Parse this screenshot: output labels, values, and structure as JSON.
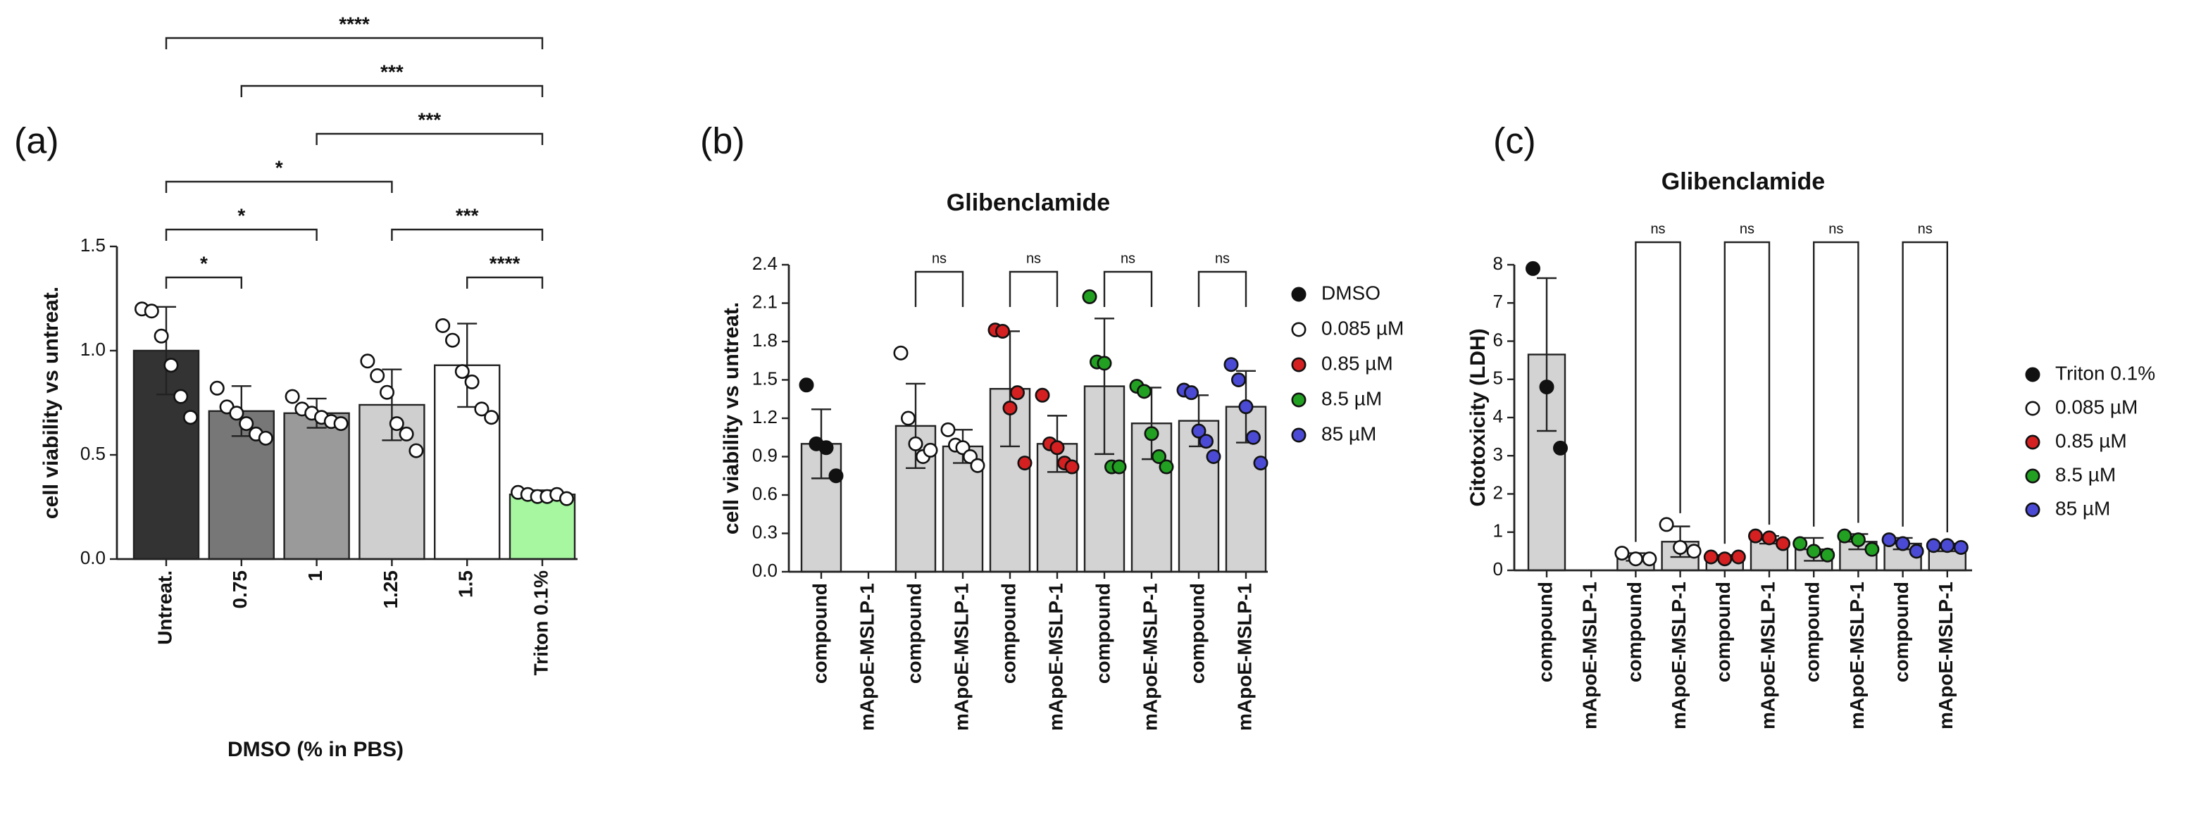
{
  "chart_data": [
    {
      "type": "bar",
      "panel_label": "(a)",
      "y_label": "cell viability vs untreat.",
      "x_label": "DMSO (% in PBS)",
      "categories": [
        "Untreat.",
        "0.75",
        "1",
        "1.25",
        "1.5",
        "Triton 0.1%"
      ],
      "series": [
        {
          "values": [
            1.0,
            0.71,
            0.7,
            0.74,
            0.93,
            0.31
          ],
          "colors": [
            "#333333",
            "#777777",
            "#9a9a9a",
            "#cfcfcf",
            "#ffffff",
            "#a6f7a0"
          ],
          "errors": [
            0.21,
            0.12,
            0.07,
            0.17,
            0.2,
            0.02
          ],
          "points": [
            [
              1.2,
              1.19,
              1.07,
              0.93,
              0.78,
              0.68
            ],
            [
              0.82,
              0.73,
              0.7,
              0.65,
              0.6,
              0.58
            ],
            [
              0.78,
              0.72,
              0.7,
              0.68,
              0.66,
              0.65
            ],
            [
              0.95,
              0.88,
              0.8,
              0.65,
              0.6,
              0.52
            ],
            [
              1.12,
              1.05,
              0.9,
              0.85,
              0.72,
              0.68
            ],
            [
              0.32,
              0.31,
              0.3,
              0.3,
              0.31,
              0.29
            ]
          ]
        }
      ],
      "point_color": "#ffffff",
      "ylim": [
        0,
        1.5
      ],
      "yticks": [
        {
          "value": 0,
          "label": "0.0"
        },
        {
          "value": 0.5,
          "label": "0.5"
        },
        {
          "value": 1,
          "label": "1.0"
        },
        {
          "value": 1.5,
          "label": "1.5"
        }
      ],
      "brackets": [
        {
          "from": 0,
          "to": 5,
          "label": "****"
        },
        {
          "from": 1,
          "to": 5,
          "label": "***"
        },
        {
          "from": 2,
          "to": 5,
          "label": "***"
        },
        {
          "from": 0,
          "to": 3,
          "label": "*"
        },
        {
          "from": 0,
          "to": 2,
          "label": "*"
        },
        {
          "from": 3,
          "to": 5,
          "label": "***"
        },
        {
          "from": 0,
          "to": 1,
          "label": "*"
        },
        {
          "from": 4,
          "to": 5,
          "label": "****"
        }
      ]
    },
    {
      "type": "bar",
      "panel_label": "(b)",
      "title": "Glibenclamide",
      "y_label": "cell viability vs untreat.",
      "categories": [
        "compound",
        "mApoE-MSLP-1",
        "compound",
        "mApoE-MSLP-1",
        "compound",
        "mApoE-MSLP-1",
        "compound",
        "mApoE-MSLP-1",
        "compound",
        "mApoE-MSLP-1"
      ],
      "bar_color": "#d3d3d3",
      "series": [
        {
          "name": "DMSO",
          "color": "#111111",
          "values": [
            1.0,
            null,
            null,
            null,
            null,
            null,
            null,
            null,
            null,
            null
          ],
          "errors": [
            0.27,
            null,
            null,
            null,
            null,
            null,
            null,
            null,
            null,
            null
          ],
          "points": [
            [
              1.46,
              1.0,
              0.97,
              0.75
            ],
            null,
            null,
            null,
            null,
            null,
            null,
            null,
            null,
            null
          ]
        },
        {
          "name": "0.085 µM",
          "color": "#ffffff",
          "values": [
            null,
            null,
            1.14,
            0.98,
            null,
            null,
            null,
            null,
            null,
            null
          ],
          "errors": [
            null,
            null,
            0.33,
            0.13,
            null,
            null,
            null,
            null,
            null,
            null
          ],
          "points": [
            null,
            null,
            [
              1.71,
              1.2,
              1.0,
              0.9,
              0.95
            ],
            [
              1.11,
              0.99,
              0.97,
              0.9,
              0.83
            ],
            null,
            null,
            null,
            null,
            null,
            null
          ]
        },
        {
          "name": "0.85 µM",
          "color": "#d42020",
          "values": [
            null,
            null,
            null,
            null,
            1.43,
            1.0,
            null,
            null,
            null,
            null
          ],
          "errors": [
            null,
            null,
            null,
            null,
            0.45,
            0.22,
            null,
            null,
            null,
            null
          ],
          "points": [
            null,
            null,
            null,
            null,
            [
              1.89,
              1.88,
              1.28,
              1.4,
              0.85
            ],
            [
              1.38,
              1.0,
              0.97,
              0.85,
              0.82
            ],
            null,
            null,
            null,
            null
          ]
        },
        {
          "name": "8.5 µM",
          "color": "#22a022",
          "values": [
            null,
            null,
            null,
            null,
            null,
            null,
            1.45,
            1.16,
            null,
            null
          ],
          "errors": [
            null,
            null,
            null,
            null,
            null,
            null,
            0.53,
            0.28,
            null,
            null
          ],
          "points": [
            null,
            null,
            null,
            null,
            null,
            null,
            [
              2.15,
              1.64,
              1.63,
              0.82,
              0.82
            ],
            [
              1.45,
              1.41,
              1.08,
              0.9,
              0.82
            ],
            null,
            null
          ]
        },
        {
          "name": "85 µM",
          "color": "#4a4ad4",
          "values": [
            null,
            null,
            null,
            null,
            null,
            null,
            null,
            null,
            1.18,
            1.29
          ],
          "errors": [
            null,
            null,
            null,
            null,
            null,
            null,
            null,
            null,
            0.2,
            0.28
          ],
          "points": [
            null,
            null,
            null,
            null,
            null,
            null,
            null,
            null,
            [
              1.42,
              1.4,
              1.1,
              1.02,
              0.9
            ],
            [
              1.62,
              1.5,
              1.29,
              1.05,
              0.85
            ]
          ]
        }
      ],
      "legend": true,
      "ylim": [
        0,
        2.4
      ],
      "yticks": [
        {
          "value": 0,
          "label": "0.0"
        },
        {
          "value": 0.3,
          "label": "0.3"
        },
        {
          "value": 0.6,
          "label": "0.6"
        },
        {
          "value": 0.9,
          "label": "0.9"
        },
        {
          "value": 1.2,
          "label": "1.2"
        },
        {
          "value": 1.5,
          "label": "1.5"
        },
        {
          "value": 1.8,
          "label": "1.8"
        },
        {
          "value": 2.1,
          "label": "2.1"
        },
        {
          "value": 2.4,
          "label": "2.4"
        }
      ],
      "brackets": [
        {
          "from": 2,
          "to": 3,
          "label": "ns"
        },
        {
          "from": 4,
          "to": 5,
          "label": "ns"
        },
        {
          "from": 6,
          "to": 7,
          "label": "ns"
        },
        {
          "from": 8,
          "to": 9,
          "label": "ns"
        }
      ]
    },
    {
      "type": "bar",
      "panel_label": "(c)",
      "title": "Glibenclamide",
      "y_label": "Citotoxicity (LDH)",
      "categories": [
        "compound",
        "mApoE-MSLP-1",
        "compound",
        "mApoE-MSLP-1",
        "compound",
        "mApoE-MSLP-1",
        "compound",
        "mApoE-MSLP-1",
        "compound",
        "mApoE-MSLP-1"
      ],
      "bar_color": "#d3d3d3",
      "series": [
        {
          "name": "Triton 0.1%",
          "color": "#111111",
          "values": [
            5.65,
            null,
            null,
            null,
            null,
            null,
            null,
            null,
            null,
            null
          ],
          "errors": [
            2.0,
            null,
            null,
            null,
            null,
            null,
            null,
            null,
            null,
            null
          ],
          "points": [
            [
              7.9,
              4.8,
              3.2
            ],
            null,
            null,
            null,
            null,
            null,
            null,
            null,
            null,
            null
          ]
        },
        {
          "name": "0.085 µM",
          "color": "#ffffff",
          "values": [
            null,
            null,
            0.35,
            0.75,
            null,
            null,
            null,
            null,
            null,
            null
          ],
          "errors": [
            null,
            null,
            0.1,
            0.4,
            null,
            null,
            null,
            null,
            null,
            null
          ],
          "points": [
            null,
            null,
            [
              0.45,
              0.3,
              0.3
            ],
            [
              1.2,
              0.6,
              0.5
            ],
            null,
            null,
            null,
            null,
            null,
            null
          ]
        },
        {
          "name": "0.85 µM",
          "color": "#d42020",
          "values": [
            null,
            null,
            null,
            null,
            0.35,
            0.8,
            null,
            null,
            null,
            null
          ],
          "errors": [
            null,
            null,
            null,
            null,
            0.05,
            0.1,
            null,
            null,
            null,
            null
          ],
          "points": [
            null,
            null,
            null,
            null,
            [
              0.35,
              0.3,
              0.35
            ],
            [
              0.9,
              0.85,
              0.7
            ],
            null,
            null,
            null,
            null
          ]
        },
        {
          "name": "8.5 µM",
          "color": "#22a022",
          "values": [
            null,
            null,
            null,
            null,
            null,
            null,
            0.55,
            0.75,
            null,
            null
          ],
          "errors": [
            null,
            null,
            null,
            null,
            null,
            null,
            0.3,
            0.2,
            null,
            null
          ],
          "points": [
            null,
            null,
            null,
            null,
            null,
            null,
            [
              0.7,
              0.5,
              0.4
            ],
            [
              0.9,
              0.8,
              0.55
            ],
            null,
            null
          ]
        },
        {
          "name": "85 µM",
          "color": "#4a4ad4",
          "values": [
            null,
            null,
            null,
            null,
            null,
            null,
            null,
            null,
            0.7,
            0.6
          ],
          "errors": [
            null,
            null,
            null,
            null,
            null,
            null,
            null,
            null,
            0.15,
            0.1
          ],
          "points": [
            null,
            null,
            null,
            null,
            null,
            null,
            null,
            null,
            [
              0.8,
              0.7,
              0.5
            ],
            [
              0.65,
              0.65,
              0.6
            ]
          ]
        }
      ],
      "legend": true,
      "ylim": [
        0,
        8
      ],
      "yticks": [
        0,
        1,
        2,
        3,
        4,
        5,
        6,
        7,
        8
      ],
      "brackets": [
        {
          "from": 2,
          "to": 3,
          "label": "ns"
        },
        {
          "from": 4,
          "to": 5,
          "label": "ns"
        },
        {
          "from": 6,
          "to": 7,
          "label": "ns"
        },
        {
          "from": 8,
          "to": 9,
          "label": "ns"
        }
      ]
    }
  ]
}
